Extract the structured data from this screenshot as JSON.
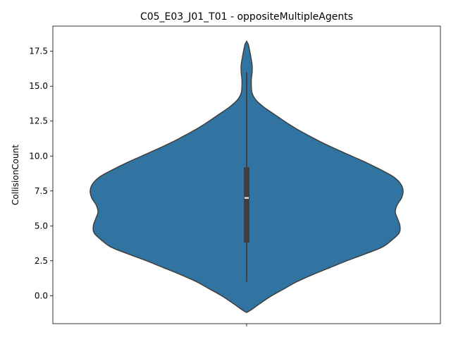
{
  "chart_data": {
    "type": "violin",
    "title": "C05_E03_J01_T01 - oppositeMultipleAgents",
    "xlabel": "",
    "ylabel": "CollisionCount",
    "ylim": [
      -2.0,
      19.3
    ],
    "yticks": [
      0.0,
      2.5,
      5.0,
      7.5,
      10.0,
      12.5,
      15.0,
      17.5
    ],
    "ytick_labels": [
      "0.0",
      "2.5",
      "5.0",
      "7.5",
      "10.0",
      "12.5",
      "15.0",
      "17.5"
    ],
    "xtick_labels": [
      ""
    ],
    "grid": false,
    "fill_color": "#3274a1",
    "edge_color": "#3f3f3f",
    "box_color": "#3f3f3f",
    "median_color": "#ffffff",
    "violin": {
      "kde_extent": [
        -1.2,
        18.2
      ],
      "density": [
        [
          -1.2,
          0.0
        ],
        [
          -1.0,
          0.03
        ],
        [
          -0.6,
          0.08
        ],
        [
          0.0,
          0.16
        ],
        [
          0.5,
          0.24
        ],
        [
          1.0,
          0.32
        ],
        [
          1.5,
          0.42
        ],
        [
          2.0,
          0.53
        ],
        [
          2.5,
          0.64
        ],
        [
          3.0,
          0.76
        ],
        [
          3.5,
          0.87
        ],
        [
          4.0,
          0.93
        ],
        [
          4.5,
          0.975
        ],
        [
          5.0,
          0.98
        ],
        [
          5.5,
          0.965
        ],
        [
          6.0,
          0.95
        ],
        [
          6.5,
          0.962
        ],
        [
          7.0,
          0.99
        ],
        [
          7.5,
          1.0
        ],
        [
          8.0,
          0.985
        ],
        [
          8.5,
          0.94
        ],
        [
          9.0,
          0.86
        ],
        [
          9.5,
          0.77
        ],
        [
          10.0,
          0.67
        ],
        [
          10.5,
          0.57
        ],
        [
          11.0,
          0.475
        ],
        [
          11.5,
          0.39
        ],
        [
          12.0,
          0.31
        ],
        [
          12.5,
          0.24
        ],
        [
          13.0,
          0.175
        ],
        [
          13.5,
          0.11
        ],
        [
          14.0,
          0.06
        ],
        [
          14.5,
          0.035
        ],
        [
          15.0,
          0.03
        ],
        [
          15.5,
          0.03
        ],
        [
          16.0,
          0.035
        ],
        [
          16.5,
          0.035
        ],
        [
          17.0,
          0.028
        ],
        [
          17.5,
          0.02
        ],
        [
          18.0,
          0.01
        ],
        [
          18.2,
          0.0
        ]
      ],
      "box": {
        "q1": 3.8,
        "median": 7.0,
        "q3": 9.2,
        "whisker_low": 1.0,
        "whisker_high": 16.0
      }
    }
  }
}
